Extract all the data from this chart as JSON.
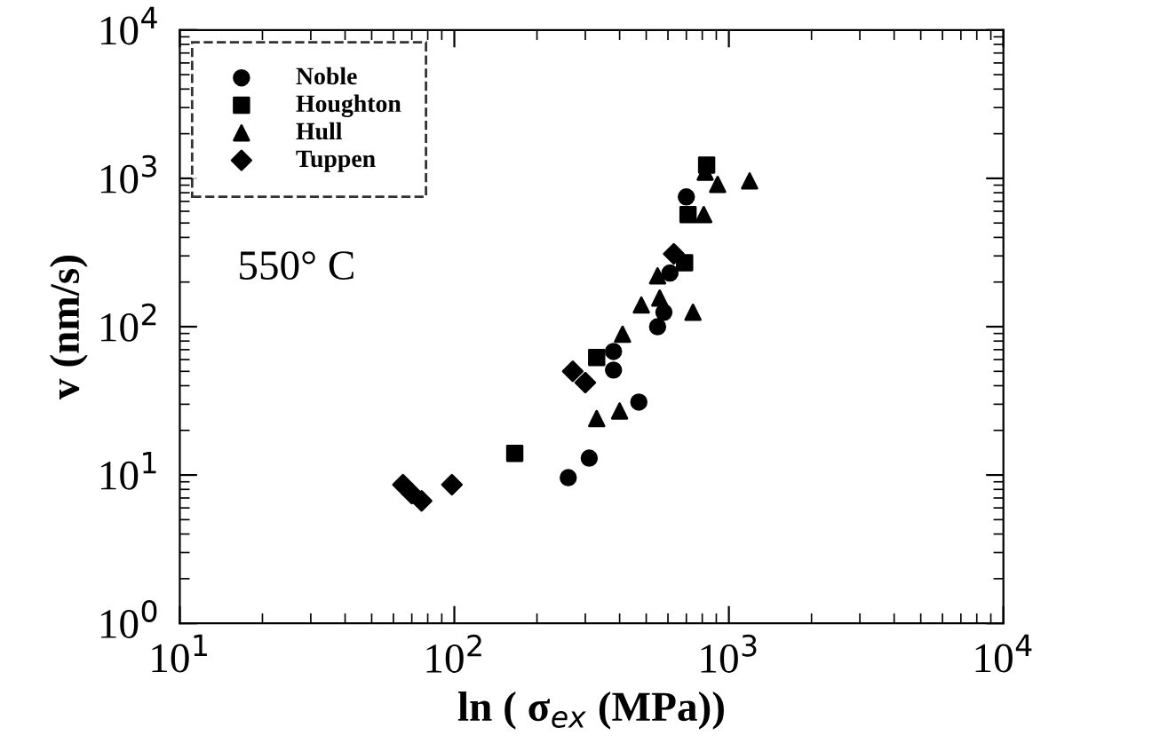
{
  "chart_data": {
    "type": "scatter",
    "xlabel": "ln ( σ$_{ex}$ (MPa))",
    "ylabel": "v (nm/s)",
    "log": "xy",
    "annotations": [
      "550° C"
    ],
    "xlim": [
      10,
      10000
    ],
    "ylim": [
      1,
      10000
    ],
    "xticks": [
      {
        "value": 10,
        "label": "10$^{1}$"
      },
      {
        "value": 100,
        "label": "10$^{2}$"
      },
      {
        "value": 1000,
        "label": "10$^{3}$"
      },
      {
        "value": 10000,
        "label": "10$^{4}$"
      }
    ],
    "yticks": [
      {
        "value": 1,
        "label": "10$^{0}$"
      },
      {
        "value": 10,
        "label": "10$^{1}$"
      },
      {
        "value": 100,
        "label": "10$^{2}$"
      },
      {
        "value": 1000,
        "label": "10$^{3}$"
      },
      {
        "value": 10000,
        "label": "10$^{4}$"
      }
    ],
    "legend": "top left",
    "grid": false,
    "series": [
      {
        "name": "Noble",
        "color": "#000000",
        "marker": "circle",
        "x": [
          700,
          610,
          580,
          550,
          380,
          380,
          470,
          310,
          260
        ],
        "values": [
          750,
          230,
          125,
          100,
          68,
          51,
          31,
          13,
          9.6
        ]
      },
      {
        "name": "Houghton",
        "color": "#000000",
        "marker": "square",
        "x": [
          710,
          830,
          690,
          330,
          166
        ],
        "values": [
          570,
          1230,
          270,
          62,
          14
        ]
      },
      {
        "name": "Hull",
        "color": "#000000",
        "marker": "triangle",
        "x": [
          810,
          820,
          910,
          1190,
          550,
          480,
          560,
          740,
          410,
          400,
          330
        ],
        "values": [
          570,
          1100,
          910,
          960,
          220,
          140,
          156,
          125,
          89,
          27,
          24
        ]
      },
      {
        "name": "Tuppen",
        "color": "#000000",
        "marker": "diamond",
        "x": [
          65,
          70,
          76,
          98,
          270,
          300,
          630
        ],
        "values": [
          8.6,
          7.5,
          6.7,
          8.6,
          50,
          42,
          310
        ]
      }
    ]
  }
}
